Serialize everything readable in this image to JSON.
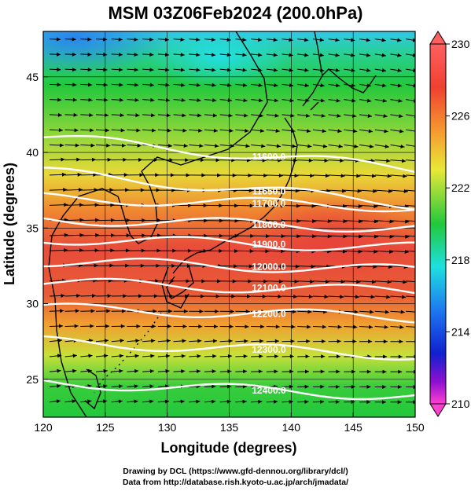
{
  "title": "MSM 03Z06Feb2024 (200.0hPa)",
  "x_axis": {
    "label": "Longitude (degrees)",
    "ticks": [
      "120",
      "125",
      "130",
      "135",
      "140",
      "145",
      "150"
    ]
  },
  "y_axis": {
    "label": "Latitude  (degrees)",
    "ticks": [
      "25",
      "30",
      "35",
      "40",
      "45"
    ]
  },
  "colorbar": {
    "ticks": [
      "230",
      "226",
      "222",
      "218",
      "214",
      "210"
    ]
  },
  "contours": [
    {
      "label": "11600.0",
      "lat": 41.0
    },
    {
      "label": "11650.0",
      "lat": 38.7
    },
    {
      "label": "11700.0",
      "lat": 37.0
    },
    {
      "label": "11800.0",
      "lat": 35.6
    },
    {
      "label": "11900.0",
      "lat": 34.3
    },
    {
      "label": "12000.0",
      "lat": 32.8
    },
    {
      "label": "12100.0",
      "lat": 31.4
    },
    {
      "label": "12200.0",
      "lat": 29.7
    },
    {
      "label": "12300.0",
      "lat": 27.5
    },
    {
      "label": "12400.0",
      "lat": 24.8
    }
  ],
  "credits": [
    "Drawing by DCL (https://www.gfd-dennou.org/library/dcl/)",
    "Data from http://database.rish.kyoto-u.ac.jp/arch/jmadata/"
  ],
  "colors": {
    "cold": "#1ee0e0",
    "green": "#22c83c",
    "yellow": "#d8e83a",
    "orange": "#f5a030",
    "red": "#e8483a",
    "contour": "#ffffff"
  }
}
